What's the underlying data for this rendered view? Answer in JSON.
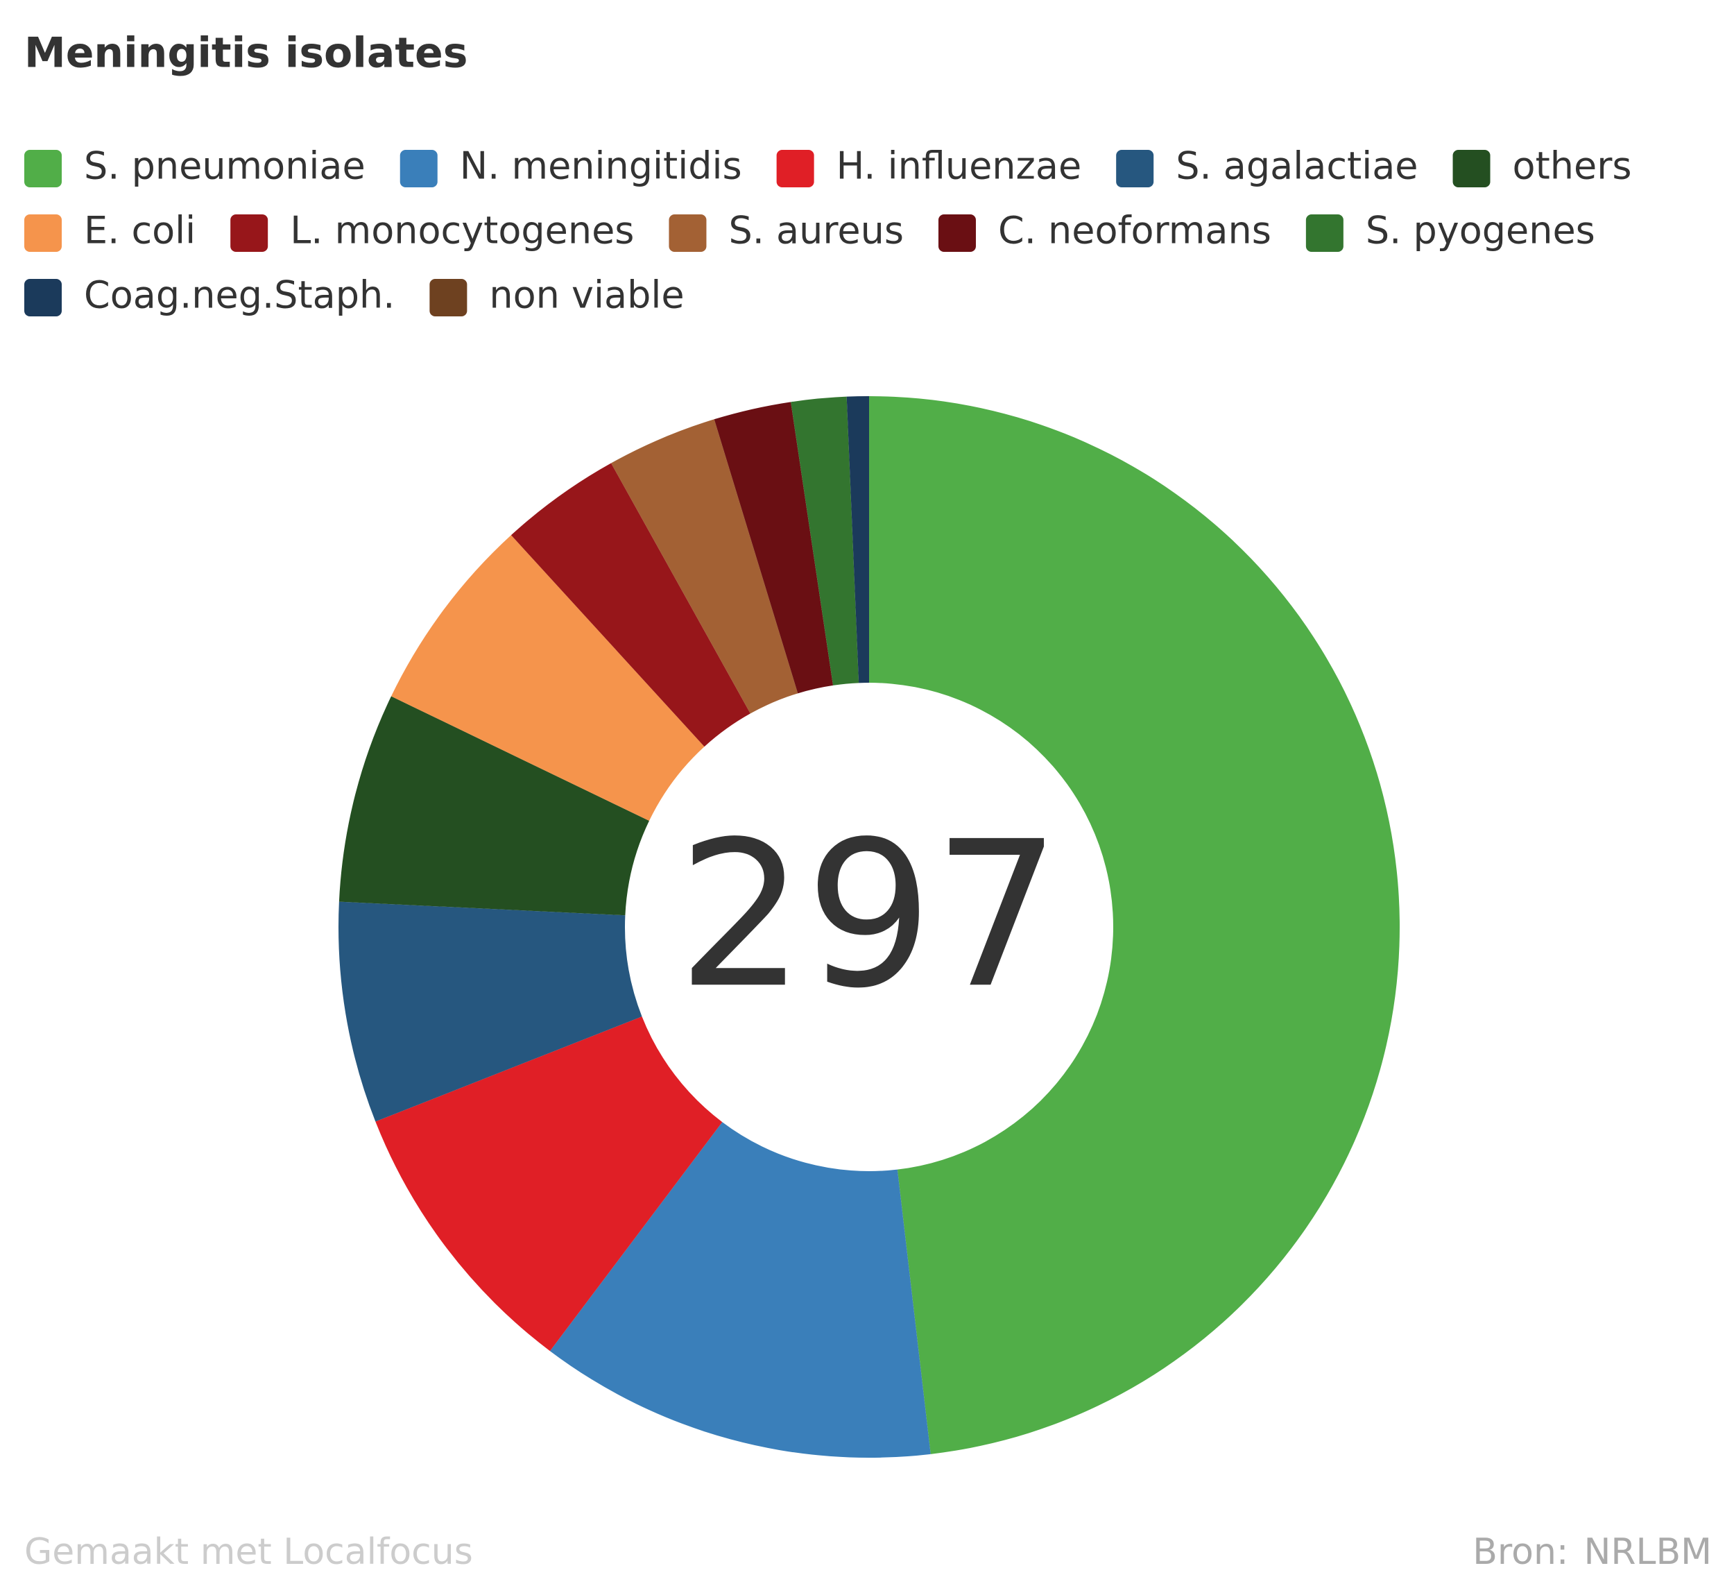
{
  "chart_data": {
    "type": "donut",
    "title": "Meningitis isolates",
    "categories": [
      "S. pneumoniae",
      "N. meningitidis",
      "H. influenzae",
      "S. agalactiae",
      "others",
      "E. coli",
      "L. monocytogenes",
      "S. aureus",
      "C. neoformans",
      "S. pyogenes",
      "Coag.neg.Staph.",
      "non viable"
    ],
    "values": [
      143,
      36,
      26,
      20,
      19,
      18,
      11,
      10,
      7,
      5,
      2,
      0
    ],
    "colors": [
      "#51ae48",
      "#3a7fba",
      "#e01f26",
      "#26577f",
      "#244f21",
      "#f5944c",
      "#97161a",
      "#a36134",
      "#6a0f13",
      "#33752f",
      "#1b3a5b",
      "#6e4120"
    ],
    "total": 297,
    "credit": "Gemaakt met Localfocus",
    "source_label": "Bron:",
    "source": "NRLBM"
  }
}
